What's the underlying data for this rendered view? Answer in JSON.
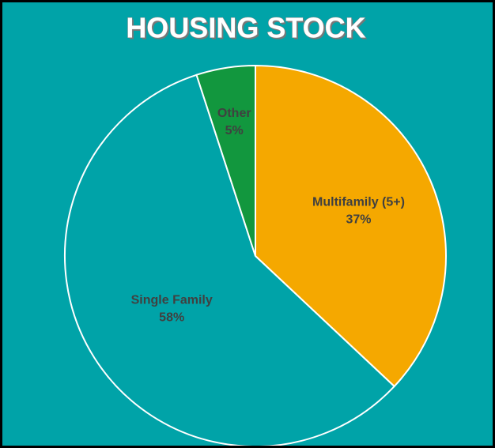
{
  "chart_data": {
    "type": "pie",
    "title": "HOUSING STOCK",
    "categories": [
      "Multifamily (5+)",
      "Single Family",
      "Other"
    ],
    "values": [
      37,
      58,
      5
    ],
    "value_labels": [
      "37%",
      "58%",
      "5%"
    ],
    "colors": [
      "#f5a800",
      "#00a3a8",
      "#12973e"
    ],
    "background": "#00a3a8"
  }
}
